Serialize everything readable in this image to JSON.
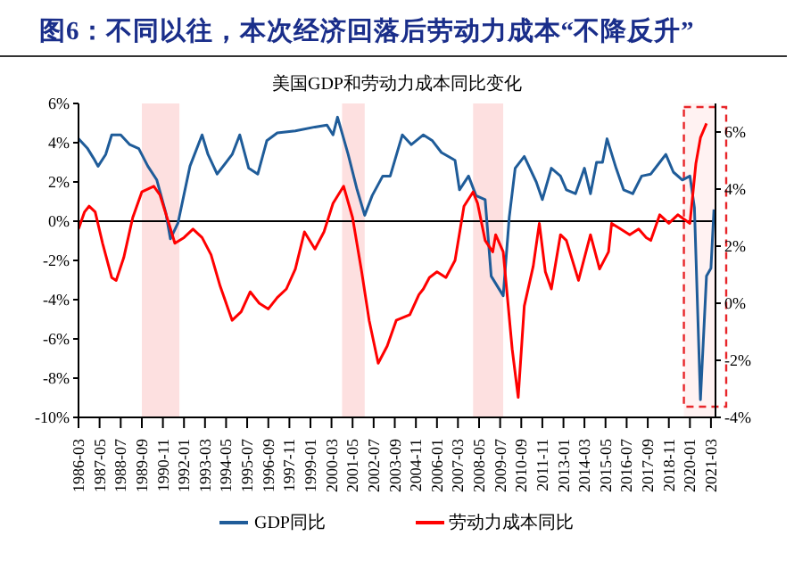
{
  "chart_data": {
    "type": "line",
    "title": "图6：不同以往，本次经济回落后劳动力成本“不降反升”",
    "subtitle": "美国GDP和劳动力成本同比变化",
    "xlim": [
      "1986-03",
      "2021-06"
    ],
    "xticks": [
      "1986-03",
      "1987-05",
      "1988-07",
      "1989-09",
      "1990-11",
      "1992-01",
      "1993-03",
      "1994-05",
      "1995-07",
      "1996-09",
      "1997-11",
      "1999-01",
      "2000-03",
      "2001-05",
      "2002-07",
      "2003-09",
      "2004-11",
      "2006-01",
      "2007-03",
      "2008-05",
      "2009-07",
      "2010-09",
      "2011-11",
      "2013-01",
      "2014-03",
      "2015-05",
      "2016-07",
      "2017-09",
      "2018-11",
      "2020-01",
      "2021-03"
    ],
    "ylim": [
      -10,
      6
    ],
    "yticks": [
      {
        "value": -10,
        "label": "-10%"
      },
      {
        "value": -8,
        "label": "-8%"
      },
      {
        "value": -6,
        "label": "-6%"
      },
      {
        "value": -4,
        "label": "-4%"
      },
      {
        "value": -2,
        "label": "-2%"
      },
      {
        "value": 0,
        "label": "0%"
      },
      {
        "value": 2,
        "label": "2%"
      },
      {
        "value": 4,
        "label": "4%"
      },
      {
        "value": 6,
        "label": "6%"
      }
    ],
    "y2lim": [
      -4,
      7
    ],
    "y2ticks": [
      {
        "value": -4,
        "label": "-4%"
      },
      {
        "value": -2,
        "label": "-2%"
      },
      {
        "value": 0,
        "label": "0%"
      },
      {
        "value": 2,
        "label": "2%"
      },
      {
        "value": 4,
        "label": "4%"
      },
      {
        "value": 6,
        "label": "6%"
      }
    ],
    "legend": "bottom",
    "marker": "none",
    "ref_lines": [
      {
        "axis": "y",
        "value": 0,
        "color": "#000000"
      }
    ],
    "bands": [
      {
        "axis": "x",
        "from": "1989-09",
        "to": "1991-10",
        "color": "#fde0e0"
      },
      {
        "axis": "x",
        "from": "2000-10",
        "to": "2002-01",
        "color": "#fde0e0"
      },
      {
        "axis": "x",
        "from": "2008-01",
        "to": "2009-09",
        "color": "#fde0e0"
      },
      {
        "axis": "x",
        "from": "2019-09",
        "to": "2021-06",
        "color": "#fff2f2"
      }
    ],
    "series": [
      {
        "name": "GDP同比",
        "color": "#1f5c99",
        "x": [
          "1986-03",
          "1986-09",
          "1987-01",
          "1987-04",
          "1987-09",
          "1988-01",
          "1988-07",
          "1989-01",
          "1989-07",
          "1990-01",
          "1990-07",
          "1991-01",
          "1991-04",
          "1991-09",
          "1992-05",
          "1993-01",
          "1993-05",
          "1993-11",
          "1994-09",
          "1995-02",
          "1995-08",
          "1996-02",
          "1996-08",
          "1997-03",
          "1998-03",
          "1999-04",
          "1999-12",
          "2000-04",
          "2000-07",
          "2001-02",
          "2001-08",
          "2002-01",
          "2002-06",
          "2003-01",
          "2003-06",
          "2004-02",
          "2004-08",
          "2005-04",
          "2005-10",
          "2006-04",
          "2007-01",
          "2007-04",
          "2007-10",
          "2008-03",
          "2008-09",
          "2009-01",
          "2009-09",
          "2010-01",
          "2010-05",
          "2010-11",
          "2011-07",
          "2011-11",
          "2012-05",
          "2012-11",
          "2013-03",
          "2013-09",
          "2014-03",
          "2014-07",
          "2014-11",
          "2015-03",
          "2015-06",
          "2015-12",
          "2016-05",
          "2016-11",
          "2017-05",
          "2017-11",
          "2018-05",
          "2018-09",
          "2019-02",
          "2019-08",
          "2020-01",
          "2020-04",
          "2020-08",
          "2020-12",
          "2021-03",
          "2021-05"
        ],
        "values": [
          4.2,
          3.7,
          3.2,
          2.8,
          3.4,
          4.4,
          4.4,
          3.9,
          3.7,
          2.8,
          2.1,
          0.4,
          -0.9,
          -0.1,
          2.8,
          4.4,
          3.4,
          2.4,
          3.4,
          4.4,
          2.7,
          2.4,
          4.1,
          4.5,
          4.6,
          4.8,
          4.9,
          4.4,
          5.3,
          3.4,
          1.6,
          0.3,
          1.3,
          2.3,
          2.3,
          4.4,
          3.9,
          4.4,
          4.1,
          3.5,
          3.1,
          1.6,
          2.3,
          1.3,
          1.1,
          -2.8,
          -3.8,
          0.2,
          2.7,
          3.3,
          2.0,
          1.1,
          2.7,
          2.3,
          1.6,
          1.4,
          2.7,
          1.4,
          3.0,
          3.0,
          4.2,
          2.7,
          1.6,
          1.4,
          2.3,
          2.4,
          3.0,
          3.4,
          2.5,
          2.1,
          2.3,
          0.7,
          -9.1,
          -2.8,
          -2.4,
          0.6
        ]
      },
      {
        "name": "劳动力成本同比",
        "color": "#ff0000",
        "axis": "y2",
        "x": [
          "1986-03",
          "1986-07",
          "1986-10",
          "1987-02",
          "1987-07",
          "1988-01",
          "1988-04",
          "1988-09",
          "1989-03",
          "1989-09",
          "1990-05",
          "1990-09",
          "1991-03",
          "1991-07",
          "1992-01",
          "1992-07",
          "1993-01",
          "1993-07",
          "1994-01",
          "1994-09",
          "1995-03",
          "1995-09",
          "1996-03",
          "1996-09",
          "1997-03",
          "1997-09",
          "1998-03",
          "1998-09",
          "1999-04",
          "1999-10",
          "2000-04",
          "2000-11",
          "2001-05",
          "2001-11",
          "2002-04",
          "2002-10",
          "2003-04",
          "2003-10",
          "2004-07",
          "2005-01",
          "2005-04",
          "2005-08",
          "2006-01",
          "2006-07",
          "2007-01",
          "2007-07",
          "2008-01",
          "2008-04",
          "2008-09",
          "2009-02",
          "2009-04",
          "2009-09",
          "2010-03",
          "2010-07",
          "2010-11",
          "2011-05",
          "2011-09",
          "2012-01",
          "2012-05",
          "2012-11",
          "2013-03",
          "2013-11",
          "2014-07",
          "2015-01",
          "2015-07",
          "2015-09",
          "2016-03",
          "2016-09",
          "2017-03",
          "2017-08",
          "2017-11",
          "2018-05",
          "2018-11",
          "2019-05",
          "2020-01",
          "2020-05",
          "2020-08",
          "2020-12"
        ],
        "values": [
          2.6,
          3.2,
          3.4,
          3.2,
          2.1,
          0.9,
          0.8,
          1.6,
          3.0,
          3.9,
          4.1,
          3.8,
          2.8,
          2.1,
          2.3,
          2.6,
          2.3,
          1.7,
          0.6,
          -0.6,
          -0.3,
          0.4,
          0.0,
          -0.2,
          0.2,
          0.5,
          1.2,
          2.5,
          1.9,
          2.5,
          3.5,
          4.1,
          3.0,
          1.1,
          -0.6,
          -2.1,
          -1.5,
          -0.6,
          -0.4,
          0.3,
          0.5,
          0.9,
          1.1,
          0.9,
          1.5,
          3.4,
          3.9,
          3.5,
          2.2,
          1.8,
          2.4,
          1.8,
          -1.6,
          -3.3,
          -0.1,
          1.3,
          2.8,
          1.1,
          0.5,
          2.4,
          2.2,
          0.8,
          2.4,
          1.2,
          1.8,
          2.8,
          2.6,
          2.4,
          2.6,
          2.3,
          2.2,
          3.1,
          2.8,
          3.1,
          2.8,
          4.9,
          5.8,
          6.3
        ]
      }
    ]
  }
}
